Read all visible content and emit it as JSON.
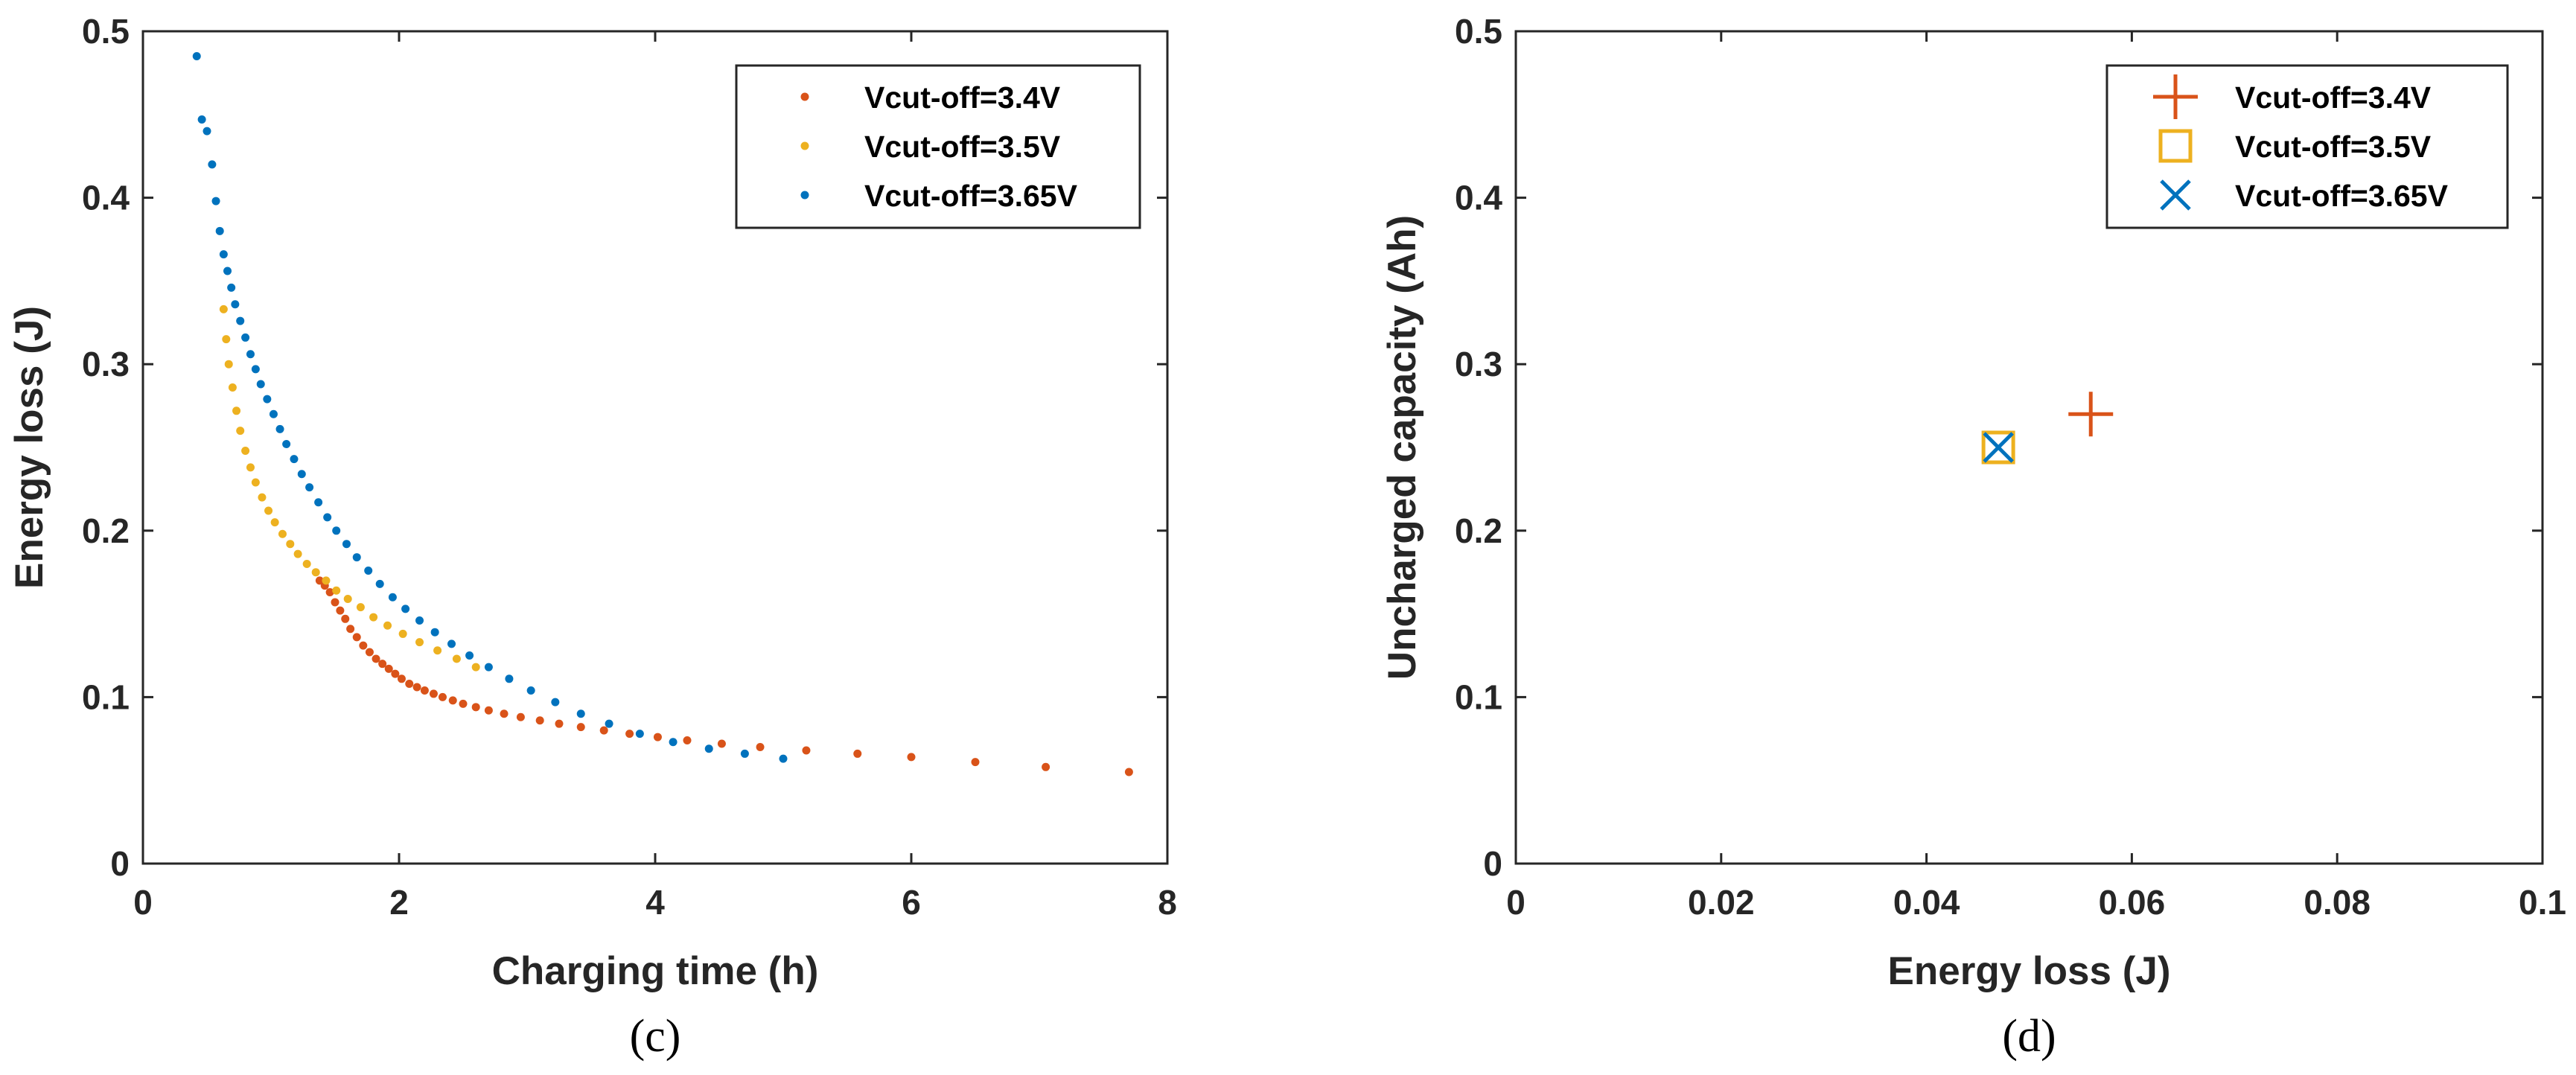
{
  "chart_data": [
    {
      "type": "scatter",
      "panel_label": "(c)",
      "xlabel": "Charging time (h)",
      "ylabel": "Energy loss (J)",
      "xlim": [
        0,
        8
      ],
      "ylim": [
        0,
        0.5
      ],
      "xticks": [
        "0",
        "2",
        "4",
        "6",
        "8"
      ],
      "yticks": [
        "0",
        "0.1",
        "0.2",
        "0.3",
        "0.4",
        "0.5"
      ],
      "legend_position": "top-right",
      "grid": false,
      "series": [
        {
          "name": "Vcut-off=3.4V",
          "color": "#D95319",
          "marker": "dot",
          "points": [
            [
              1.38,
              0.17
            ],
            [
              1.42,
              0.167
            ],
            [
              1.46,
              0.163
            ],
            [
              1.5,
              0.157
            ],
            [
              1.54,
              0.152
            ],
            [
              1.58,
              0.147
            ],
            [
              1.62,
              0.141
            ],
            [
              1.67,
              0.136
            ],
            [
              1.72,
              0.131
            ],
            [
              1.77,
              0.127
            ],
            [
              1.82,
              0.123
            ],
            [
              1.87,
              0.12
            ],
            [
              1.92,
              0.117
            ],
            [
              1.97,
              0.114
            ],
            [
              2.02,
              0.111
            ],
            [
              2.08,
              0.108
            ],
            [
              2.14,
              0.106
            ],
            [
              2.2,
              0.104
            ],
            [
              2.27,
              0.102
            ],
            [
              2.34,
              0.1
            ],
            [
              2.42,
              0.098
            ],
            [
              2.5,
              0.096
            ],
            [
              2.6,
              0.094
            ],
            [
              2.7,
              0.092
            ],
            [
              2.82,
              0.09
            ],
            [
              2.95,
              0.088
            ],
            [
              3.1,
              0.086
            ],
            [
              3.25,
              0.084
            ],
            [
              3.42,
              0.082
            ],
            [
              3.6,
              0.08
            ],
            [
              3.8,
              0.078
            ],
            [
              4.02,
              0.076
            ],
            [
              4.25,
              0.074
            ],
            [
              4.52,
              0.072
            ],
            [
              4.82,
              0.07
            ],
            [
              5.18,
              0.068
            ],
            [
              5.58,
              0.066
            ],
            [
              6.0,
              0.064
            ],
            [
              6.5,
              0.061
            ],
            [
              7.05,
              0.058
            ],
            [
              7.7,
              0.055
            ]
          ]
        },
        {
          "name": "Vcut-off=3.5V",
          "color": "#EDB120",
          "marker": "dot",
          "points": [
            [
              0.63,
              0.333
            ],
            [
              0.65,
              0.315
            ],
            [
              0.67,
              0.3
            ],
            [
              0.7,
              0.286
            ],
            [
              0.73,
              0.272
            ],
            [
              0.76,
              0.26
            ],
            [
              0.8,
              0.248
            ],
            [
              0.84,
              0.238
            ],
            [
              0.88,
              0.229
            ],
            [
              0.93,
              0.22
            ],
            [
              0.98,
              0.212
            ],
            [
              1.03,
              0.205
            ],
            [
              1.09,
              0.198
            ],
            [
              1.15,
              0.192
            ],
            [
              1.21,
              0.186
            ],
            [
              1.28,
              0.18
            ],
            [
              1.35,
              0.175
            ],
            [
              1.43,
              0.17
            ],
            [
              1.51,
              0.164
            ],
            [
              1.6,
              0.159
            ],
            [
              1.7,
              0.154
            ],
            [
              1.8,
              0.148
            ],
            [
              1.91,
              0.143
            ],
            [
              2.03,
              0.138
            ],
            [
              2.16,
              0.133
            ],
            [
              2.3,
              0.128
            ],
            [
              2.45,
              0.123
            ],
            [
              2.6,
              0.118
            ]
          ]
        },
        {
          "name": "Vcut-off=3.65V",
          "color": "#0072BD",
          "marker": "dot",
          "points": [
            [
              0.42,
              0.485
            ],
            [
              0.46,
              0.447
            ],
            [
              0.5,
              0.44
            ],
            [
              0.54,
              0.42
            ],
            [
              0.57,
              0.398
            ],
            [
              0.6,
              0.38
            ],
            [
              0.63,
              0.366
            ],
            [
              0.66,
              0.356
            ],
            [
              0.69,
              0.346
            ],
            [
              0.72,
              0.336
            ],
            [
              0.76,
              0.326
            ],
            [
              0.8,
              0.316
            ],
            [
              0.84,
              0.306
            ],
            [
              0.88,
              0.297
            ],
            [
              0.92,
              0.288
            ],
            [
              0.97,
              0.279
            ],
            [
              1.02,
              0.27
            ],
            [
              1.07,
              0.261
            ],
            [
              1.12,
              0.252
            ],
            [
              1.18,
              0.243
            ],
            [
              1.24,
              0.234
            ],
            [
              1.3,
              0.226
            ],
            [
              1.37,
              0.217
            ],
            [
              1.44,
              0.208
            ],
            [
              1.51,
              0.2
            ],
            [
              1.59,
              0.192
            ],
            [
              1.67,
              0.184
            ],
            [
              1.76,
              0.176
            ],
            [
              1.85,
              0.168
            ],
            [
              1.95,
              0.16
            ],
            [
              2.05,
              0.153
            ],
            [
              2.16,
              0.146
            ],
            [
              2.28,
              0.139
            ],
            [
              2.41,
              0.132
            ],
            [
              2.55,
              0.125
            ],
            [
              2.7,
              0.118
            ],
            [
              2.86,
              0.111
            ],
            [
              3.03,
              0.104
            ],
            [
              3.22,
              0.097
            ],
            [
              3.42,
              0.09
            ],
            [
              3.64,
              0.084
            ],
            [
              3.88,
              0.078
            ],
            [
              4.14,
              0.073
            ],
            [
              4.42,
              0.069
            ],
            [
              4.7,
              0.066
            ],
            [
              5.0,
              0.063
            ]
          ]
        }
      ]
    },
    {
      "type": "scatter",
      "panel_label": "(d)",
      "xlabel": "Energy loss (J)",
      "ylabel": "Uncharged capacity (Ah)",
      "xlim": [
        0,
        0.1
      ],
      "ylim": [
        0,
        0.5
      ],
      "xticks": [
        "0",
        "0.02",
        "0.04",
        "0.06",
        "0.08",
        "0.1"
      ],
      "yticks": [
        "0",
        "0.1",
        "0.2",
        "0.3",
        "0.4",
        "0.5"
      ],
      "legend_position": "top-right",
      "grid": false,
      "series": [
        {
          "name": "Vcut-off=3.4V",
          "color": "#D95319",
          "marker": "plus",
          "points": [
            [
              0.056,
              0.27
            ]
          ]
        },
        {
          "name": "Vcut-off=3.5V",
          "color": "#EDB120",
          "marker": "square",
          "points": [
            [
              0.047,
              0.25
            ]
          ]
        },
        {
          "name": "Vcut-off=3.65V",
          "color": "#0072BD",
          "marker": "x",
          "points": [
            [
              0.047,
              0.25
            ]
          ]
        }
      ]
    }
  ]
}
